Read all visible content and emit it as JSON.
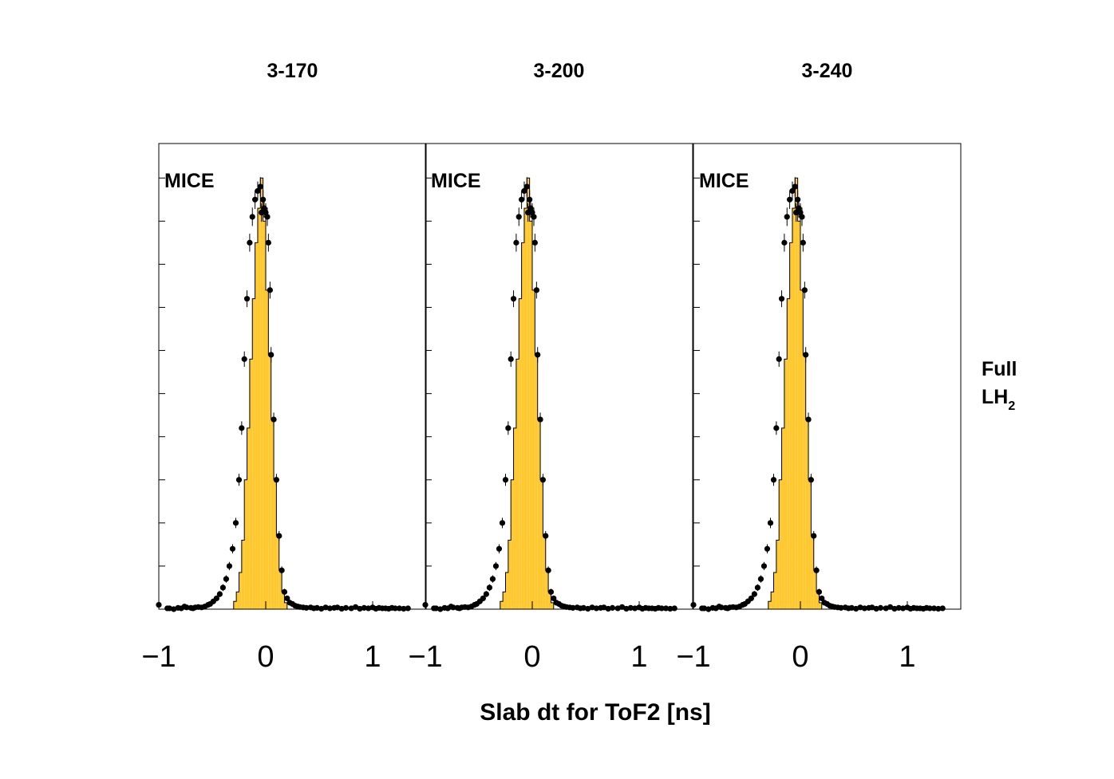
{
  "chart_data": {
    "type": "bar",
    "x_axis_title": "Slab dt for ToF2 [ns]",
    "side_label_line1": "Full",
    "side_label_line2_main": "LH",
    "side_label_line2_sub": "2",
    "xlim": [
      -1.0,
      1.5
    ],
    "x_ticks": [
      -1,
      0,
      1
    ],
    "x_tick_labels": [
      "−1",
      "0",
      "1"
    ],
    "ylim": [
      0,
      1.08
    ],
    "bin_edges_start": -0.3,
    "bin_width": 0.025,
    "colors": {
      "hist_fill": "#fec930",
      "hist_line": "#000000",
      "points": "#000000"
    },
    "panels": [
      {
        "title": "3-170",
        "watermark": "MICE",
        "histogram_values": [
          0.018,
          0.04,
          0.085,
          0.16,
          0.3,
          0.42,
          0.58,
          0.72,
          0.85,
          0.93,
          1.0,
          0.9,
          0.74,
          0.59,
          0.44,
          0.3,
          0.17,
          0.09,
          0.04,
          0.015
        ],
        "data_points": {
          "x": [
            -1.0,
            -0.92,
            -0.9,
            -0.86,
            -0.82,
            -0.79,
            -0.76,
            -0.74,
            -0.7,
            -0.68,
            -0.66,
            -0.63,
            -0.6,
            -0.57,
            -0.54,
            -0.52,
            -0.49,
            -0.46,
            -0.43,
            -0.4,
            -0.37,
            -0.34,
            -0.31,
            -0.28,
            -0.25,
            -0.225,
            -0.2,
            -0.175,
            -0.15,
            -0.125,
            -0.1,
            -0.075,
            -0.05,
            -0.04,
            -0.025,
            -0.015,
            0.0,
            0.015,
            0.025,
            0.04,
            0.05,
            0.075,
            0.1,
            0.125,
            0.15,
            0.175,
            0.2,
            0.225,
            0.25,
            0.275,
            0.3,
            0.32,
            0.35,
            0.38,
            0.42,
            0.45,
            0.48,
            0.52,
            0.56,
            0.6,
            0.64,
            0.67,
            0.71,
            0.75,
            0.8,
            0.84,
            0.88,
            0.92,
            0.96,
            1.0,
            1.03,
            1.06,
            1.09,
            1.12,
            1.15,
            1.18,
            1.21,
            1.25,
            1.29,
            1.33
          ],
          "y": [
            0.01,
            0.002,
            0.002,
            0.0,
            0.003,
            0.002,
            0.006,
            0.004,
            0.003,
            0.002,
            0.004,
            0.005,
            0.004,
            0.006,
            0.01,
            0.012,
            0.018,
            0.025,
            0.035,
            0.05,
            0.07,
            0.1,
            0.14,
            0.2,
            0.3,
            0.42,
            0.58,
            0.72,
            0.85,
            0.91,
            0.95,
            0.97,
            0.98,
            0.92,
            0.95,
            0.93,
            0.92,
            0.91,
            0.85,
            0.74,
            0.59,
            0.44,
            0.3,
            0.17,
            0.09,
            0.04,
            0.025,
            0.015,
            0.012,
            0.008,
            0.006,
            0.005,
            0.004,
            0.003,
            0.004,
            0.002,
            0.003,
            0.001,
            0.004,
            0.002,
            0.003,
            0.004,
            0.001,
            0.003,
            0.002,
            0.005,
            0.001,
            0.003,
            0.002,
            0.004,
            0.001,
            0.003,
            0.002,
            0.002,
            0.001,
            0.003,
            0.002,
            0.002,
            0.001,
            0.002
          ]
        }
      },
      {
        "title": "3-200",
        "watermark": "MICE",
        "histogram_values": [
          0.018,
          0.04,
          0.085,
          0.16,
          0.3,
          0.42,
          0.58,
          0.72,
          0.85,
          0.93,
          1.0,
          0.9,
          0.74,
          0.59,
          0.44,
          0.3,
          0.17,
          0.09,
          0.04,
          0.015
        ],
        "data_points": {
          "x": [
            -1.0,
            -0.92,
            -0.9,
            -0.86,
            -0.82,
            -0.79,
            -0.76,
            -0.74,
            -0.7,
            -0.68,
            -0.66,
            -0.63,
            -0.6,
            -0.57,
            -0.54,
            -0.52,
            -0.49,
            -0.46,
            -0.43,
            -0.4,
            -0.37,
            -0.34,
            -0.31,
            -0.28,
            -0.25,
            -0.225,
            -0.2,
            -0.175,
            -0.15,
            -0.125,
            -0.1,
            -0.075,
            -0.05,
            -0.04,
            -0.025,
            -0.015,
            0.0,
            0.015,
            0.025,
            0.04,
            0.05,
            0.075,
            0.1,
            0.125,
            0.15,
            0.175,
            0.2,
            0.225,
            0.25,
            0.275,
            0.3,
            0.32,
            0.35,
            0.38,
            0.42,
            0.45,
            0.48,
            0.52,
            0.56,
            0.6,
            0.64,
            0.67,
            0.71,
            0.75,
            0.8,
            0.84,
            0.88,
            0.92,
            0.96,
            1.0,
            1.03,
            1.06,
            1.09,
            1.12,
            1.15,
            1.18,
            1.21,
            1.25,
            1.29,
            1.33
          ],
          "y": [
            0.01,
            0.002,
            0.002,
            0.0,
            0.003,
            0.002,
            0.006,
            0.004,
            0.003,
            0.002,
            0.004,
            0.005,
            0.004,
            0.006,
            0.01,
            0.012,
            0.018,
            0.025,
            0.035,
            0.05,
            0.07,
            0.1,
            0.14,
            0.2,
            0.3,
            0.42,
            0.58,
            0.72,
            0.85,
            0.91,
            0.95,
            0.97,
            0.98,
            0.92,
            0.95,
            0.93,
            0.92,
            0.91,
            0.85,
            0.74,
            0.59,
            0.44,
            0.3,
            0.17,
            0.09,
            0.04,
            0.025,
            0.015,
            0.012,
            0.008,
            0.006,
            0.005,
            0.004,
            0.003,
            0.004,
            0.002,
            0.003,
            0.001,
            0.004,
            0.002,
            0.003,
            0.004,
            0.001,
            0.003,
            0.002,
            0.005,
            0.001,
            0.003,
            0.002,
            0.004,
            0.001,
            0.003,
            0.002,
            0.002,
            0.001,
            0.003,
            0.002,
            0.002,
            0.001,
            0.002
          ]
        }
      },
      {
        "title": "3-240",
        "watermark": "MICE",
        "histogram_values": [
          0.018,
          0.04,
          0.085,
          0.16,
          0.3,
          0.42,
          0.58,
          0.72,
          0.85,
          0.93,
          1.0,
          0.9,
          0.74,
          0.59,
          0.44,
          0.3,
          0.17,
          0.09,
          0.04,
          0.015
        ],
        "data_points": {
          "x": [
            -1.0,
            -0.92,
            -0.9,
            -0.86,
            -0.82,
            -0.79,
            -0.76,
            -0.74,
            -0.7,
            -0.68,
            -0.66,
            -0.63,
            -0.6,
            -0.57,
            -0.54,
            -0.52,
            -0.49,
            -0.46,
            -0.43,
            -0.4,
            -0.37,
            -0.34,
            -0.31,
            -0.28,
            -0.25,
            -0.225,
            -0.2,
            -0.175,
            -0.15,
            -0.125,
            -0.1,
            -0.075,
            -0.05,
            -0.04,
            -0.025,
            -0.015,
            0.0,
            0.015,
            0.025,
            0.04,
            0.05,
            0.075,
            0.1,
            0.125,
            0.15,
            0.175,
            0.2,
            0.225,
            0.25,
            0.275,
            0.3,
            0.32,
            0.35,
            0.38,
            0.42,
            0.45,
            0.48,
            0.52,
            0.56,
            0.6,
            0.64,
            0.67,
            0.71,
            0.75,
            0.8,
            0.84,
            0.88,
            0.92,
            0.96,
            1.0,
            1.03,
            1.06,
            1.09,
            1.12,
            1.15,
            1.18,
            1.21,
            1.25,
            1.29,
            1.33
          ],
          "y": [
            0.01,
            0.002,
            0.002,
            0.0,
            0.003,
            0.002,
            0.006,
            0.004,
            0.003,
            0.002,
            0.004,
            0.005,
            0.004,
            0.006,
            0.01,
            0.012,
            0.018,
            0.025,
            0.035,
            0.05,
            0.07,
            0.1,
            0.14,
            0.2,
            0.3,
            0.42,
            0.58,
            0.72,
            0.85,
            0.91,
            0.95,
            0.97,
            0.98,
            0.92,
            0.95,
            0.93,
            0.92,
            0.91,
            0.85,
            0.74,
            0.59,
            0.44,
            0.3,
            0.17,
            0.09,
            0.04,
            0.025,
            0.015,
            0.012,
            0.008,
            0.006,
            0.005,
            0.004,
            0.003,
            0.004,
            0.002,
            0.003,
            0.001,
            0.004,
            0.002,
            0.003,
            0.004,
            0.001,
            0.003,
            0.002,
            0.005,
            0.001,
            0.003,
            0.002,
            0.004,
            0.001,
            0.003,
            0.002,
            0.002,
            0.001,
            0.003,
            0.002,
            0.002,
            0.001,
            0.002
          ]
        }
      }
    ]
  }
}
